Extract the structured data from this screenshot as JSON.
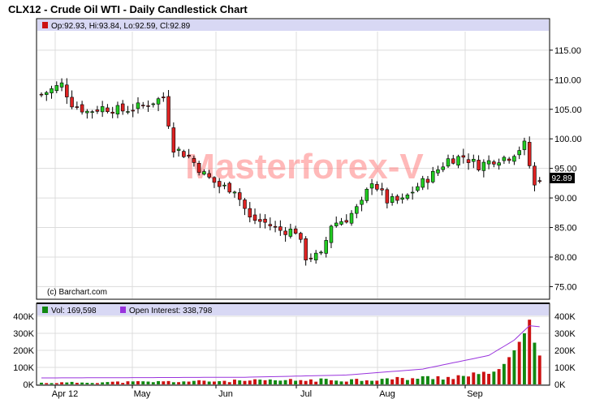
{
  "title": "CLX12 - Crude Oil WTI - Daily Candlestick Chart",
  "ohlc_legend": "Op:92.93, Hi:93.84, Lo:92.59, Cl:92.89",
  "current_price_label": "92.89",
  "watermark": "Masterforex-V",
  "credit": "(c) Barchart.com",
  "volume_legend": "Vol: 169,598",
  "oi_legend": "Open Interest: 338,798",
  "colors": {
    "up": "#22cc22",
    "down": "#dd2222",
    "volume_up": "#118811",
    "volume_down": "#cc1111",
    "open_interest": "#9933dd",
    "legend_bar": "#d8d8f4",
    "grid": "#dcdcdc",
    "watermark": "#ff7f7f"
  },
  "chart_data": [
    {
      "type": "candlestick",
      "title": "CLX12 - Crude Oil WTI - Daily Candlestick Chart",
      "ylim": [
        73,
        118
      ],
      "y_ticks": [
        "115.00",
        "110.00",
        "105.00",
        "100.00",
        "95.00",
        "90.00",
        "85.00",
        "80.00",
        "75.00"
      ],
      "x_ticks": [
        "Apr 12",
        "May",
        "Jun",
        "Jul",
        "Aug",
        "Sep"
      ],
      "ohlc_anchors": [
        {
          "d": 0,
          "c": 107.5
        },
        {
          "d": 4,
          "c": 109.2
        },
        {
          "d": 6,
          "c": 106.0
        },
        {
          "d": 9,
          "c": 104.6
        },
        {
          "d": 12,
          "c": 105.3
        },
        {
          "d": 16,
          "c": 104.8
        },
        {
          "d": 20,
          "c": 105.6
        },
        {
          "d": 24,
          "c": 107.0
        },
        {
          "d": 26,
          "c": 98.5
        },
        {
          "d": 29,
          "c": 97.0
        },
        {
          "d": 32,
          "c": 94.0
        },
        {
          "d": 35,
          "c": 92.0
        },
        {
          "d": 38,
          "c": 91.5
        },
        {
          "d": 41,
          "c": 86.5
        },
        {
          "d": 44,
          "c": 85.8
        },
        {
          "d": 47,
          "c": 84.5
        },
        {
          "d": 50,
          "c": 84.5
        },
        {
          "d": 52,
          "c": 80.0
        },
        {
          "d": 55,
          "c": 80.2
        },
        {
          "d": 57,
          "c": 85.5
        },
        {
          "d": 60,
          "c": 86.5
        },
        {
          "d": 63,
          "c": 89.0
        },
        {
          "d": 65,
          "c": 93.0
        },
        {
          "d": 68,
          "c": 89.5
        },
        {
          "d": 71,
          "c": 89.5
        },
        {
          "d": 74,
          "c": 92.0
        },
        {
          "d": 77,
          "c": 94.0
        },
        {
          "d": 80,
          "c": 96.5
        },
        {
          "d": 83,
          "c": 97.0
        },
        {
          "d": 86,
          "c": 95.5
        },
        {
          "d": 89,
          "c": 96.5
        },
        {
          "d": 92,
          "c": 97.0
        },
        {
          "d": 95,
          "c": 99.0
        },
        {
          "d": 97,
          "c": 92.0
        },
        {
          "d": 98,
          "c": 92.89
        }
      ],
      "last_candle": {
        "open": 92.93,
        "high": 93.84,
        "low": 92.59,
        "close": 92.89
      }
    },
    {
      "type": "bar+line",
      "ylim": [
        0,
        400000
      ],
      "y_ticks": [
        "400K",
        "300K",
        "200K",
        "100K",
        "0K"
      ],
      "series": [
        {
          "name": "Vol: 169,598",
          "last": 169598,
          "recent": [
            62000,
            75000,
            90000,
            120000,
            160000,
            200000,
            250000,
            300000,
            380000,
            245000,
            169598
          ]
        },
        {
          "name": "Open Interest: 338,798",
          "last": 338798,
          "path": [
            {
              "d": 0,
              "v": 38000
            },
            {
              "d": 40,
              "v": 42000
            },
            {
              "d": 60,
              "v": 55000
            },
            {
              "d": 75,
              "v": 90000
            },
            {
              "d": 88,
              "v": 170000
            },
            {
              "d": 93,
              "v": 260000
            },
            {
              "d": 96,
              "v": 345000
            },
            {
              "d": 98,
              "v": 338798
            }
          ]
        }
      ]
    }
  ]
}
